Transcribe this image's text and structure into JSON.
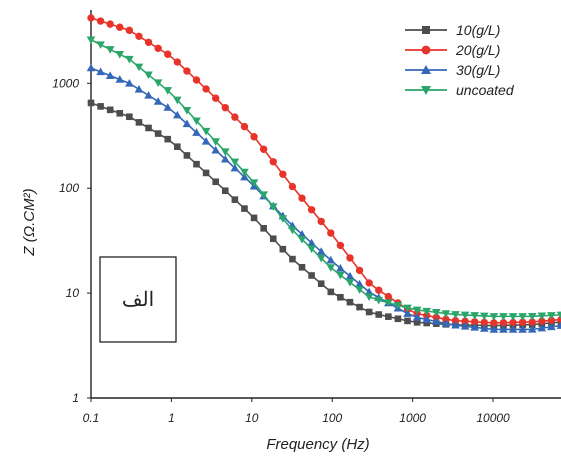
{
  "chart_data": {
    "type": "line",
    "xlabel": "Frequency (Hz)",
    "ylabel": "Z (Ω.CM²)",
    "x_scale": "log",
    "y_scale": "log",
    "xlim": [
      0.1,
      70000
    ],
    "ylim": [
      1,
      5000
    ],
    "x_ticks": [
      "0.1",
      "1",
      "10",
      "100",
      "1000",
      "10000"
    ],
    "y_ticks": [
      "1",
      "10",
      "100",
      "1000"
    ],
    "grid": false,
    "legend_position": "top-right",
    "annotation": "الف",
    "series": [
      {
        "name": "10(g/L)",
        "color": "#4d4d4d",
        "marker": "square",
        "x": [
          0.1,
          0.3,
          1,
          3,
          10,
          30,
          100,
          300,
          1000,
          3000,
          10000,
          30000,
          70000
        ],
        "y": [
          650,
          480,
          280,
          130,
          55,
          22,
          10,
          6.5,
          5.3,
          5,
          4.9,
          5,
          5.3
        ]
      },
      {
        "name": "20(g/L)",
        "color": "#e8332a",
        "marker": "circle",
        "x": [
          0.1,
          0.3,
          1,
          3,
          10,
          30,
          100,
          300,
          1000,
          3000,
          10000,
          30000,
          70000
        ],
        "y": [
          4200,
          3200,
          1800,
          820,
          330,
          110,
          36,
          12,
          6.5,
          5.5,
          5.2,
          5.3,
          5.6
        ]
      },
      {
        "name": "30(g/L)",
        "color": "#3567b8",
        "marker": "triangle-up",
        "x": [
          0.1,
          0.3,
          1,
          3,
          10,
          30,
          100,
          300,
          1000,
          3000,
          10000,
          30000,
          70000
        ],
        "y": [
          1400,
          1000,
          560,
          260,
          110,
          46,
          20,
          10,
          6,
          5,
          4.5,
          4.5,
          4.9
        ]
      },
      {
        "name": "uncoated",
        "color": "#2aa66a",
        "marker": "triangle-down",
        "x": [
          0.1,
          0.3,
          1,
          3,
          10,
          30,
          100,
          300,
          1000,
          3000,
          10000,
          30000,
          70000
        ],
        "y": [
          2600,
          1700,
          800,
          320,
          120,
          42,
          17,
          9,
          7,
          6.3,
          6,
          6,
          6.2
        ]
      }
    ]
  }
}
